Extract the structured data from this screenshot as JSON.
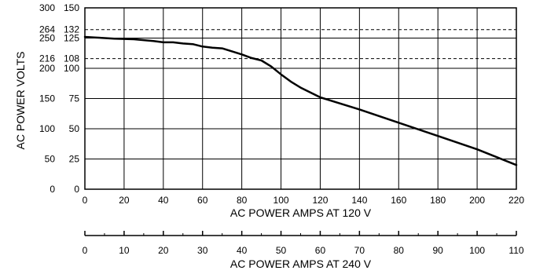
{
  "chart_data": {
    "type": "line",
    "title": "",
    "ylabel": "AC POWER VOLTS",
    "xlabel": "AC POWER AMPS AT 120 V",
    "x2label": "AC POWER AMPS AT 240 V",
    "xlim": [
      0,
      220
    ],
    "x2lim": [
      0,
      110
    ],
    "ylim_240": [
      0,
      300
    ],
    "ylim_120": [
      0,
      150
    ],
    "x_ticks": [
      0,
      20,
      40,
      60,
      80,
      100,
      120,
      140,
      160,
      180,
      200,
      220
    ],
    "x2_ticks": [
      0,
      10,
      20,
      30,
      40,
      50,
      60,
      70,
      80,
      90,
      100,
      110
    ],
    "y_ticks": [
      {
        "v240": 0,
        "v120": 0
      },
      {
        "v240": 50,
        "v120": 25
      },
      {
        "v240": 100,
        "v120": 50
      },
      {
        "v240": 150,
        "v120": 75
      },
      {
        "v240": 200,
        "v120": 100
      },
      {
        "v240": 216,
        "v120": 108
      },
      {
        "v240": 250,
        "v120": 125
      },
      {
        "v240": 264,
        "v120": 132
      },
      {
        "v240": 300,
        "v120": 150
      }
    ],
    "dashed_levels_v240": [
      264,
      216
    ],
    "grid": true,
    "series": [
      {
        "x": [
          0,
          5,
          15,
          25,
          35,
          40,
          45,
          50,
          55,
          60,
          65,
          70,
          75,
          80,
          85,
          90,
          95,
          100,
          105,
          110,
          120,
          140,
          160,
          180,
          200,
          220
        ],
        "y": [
          126,
          125.5,
          124.5,
          124,
          122.5,
          121.5,
          121.5,
          120.5,
          120,
          118,
          117,
          116.5,
          114,
          111.5,
          108.5,
          106.5,
          101.5,
          95,
          89,
          84,
          76,
          66,
          55,
          44,
          33,
          20
        ]
      }
    ]
  }
}
